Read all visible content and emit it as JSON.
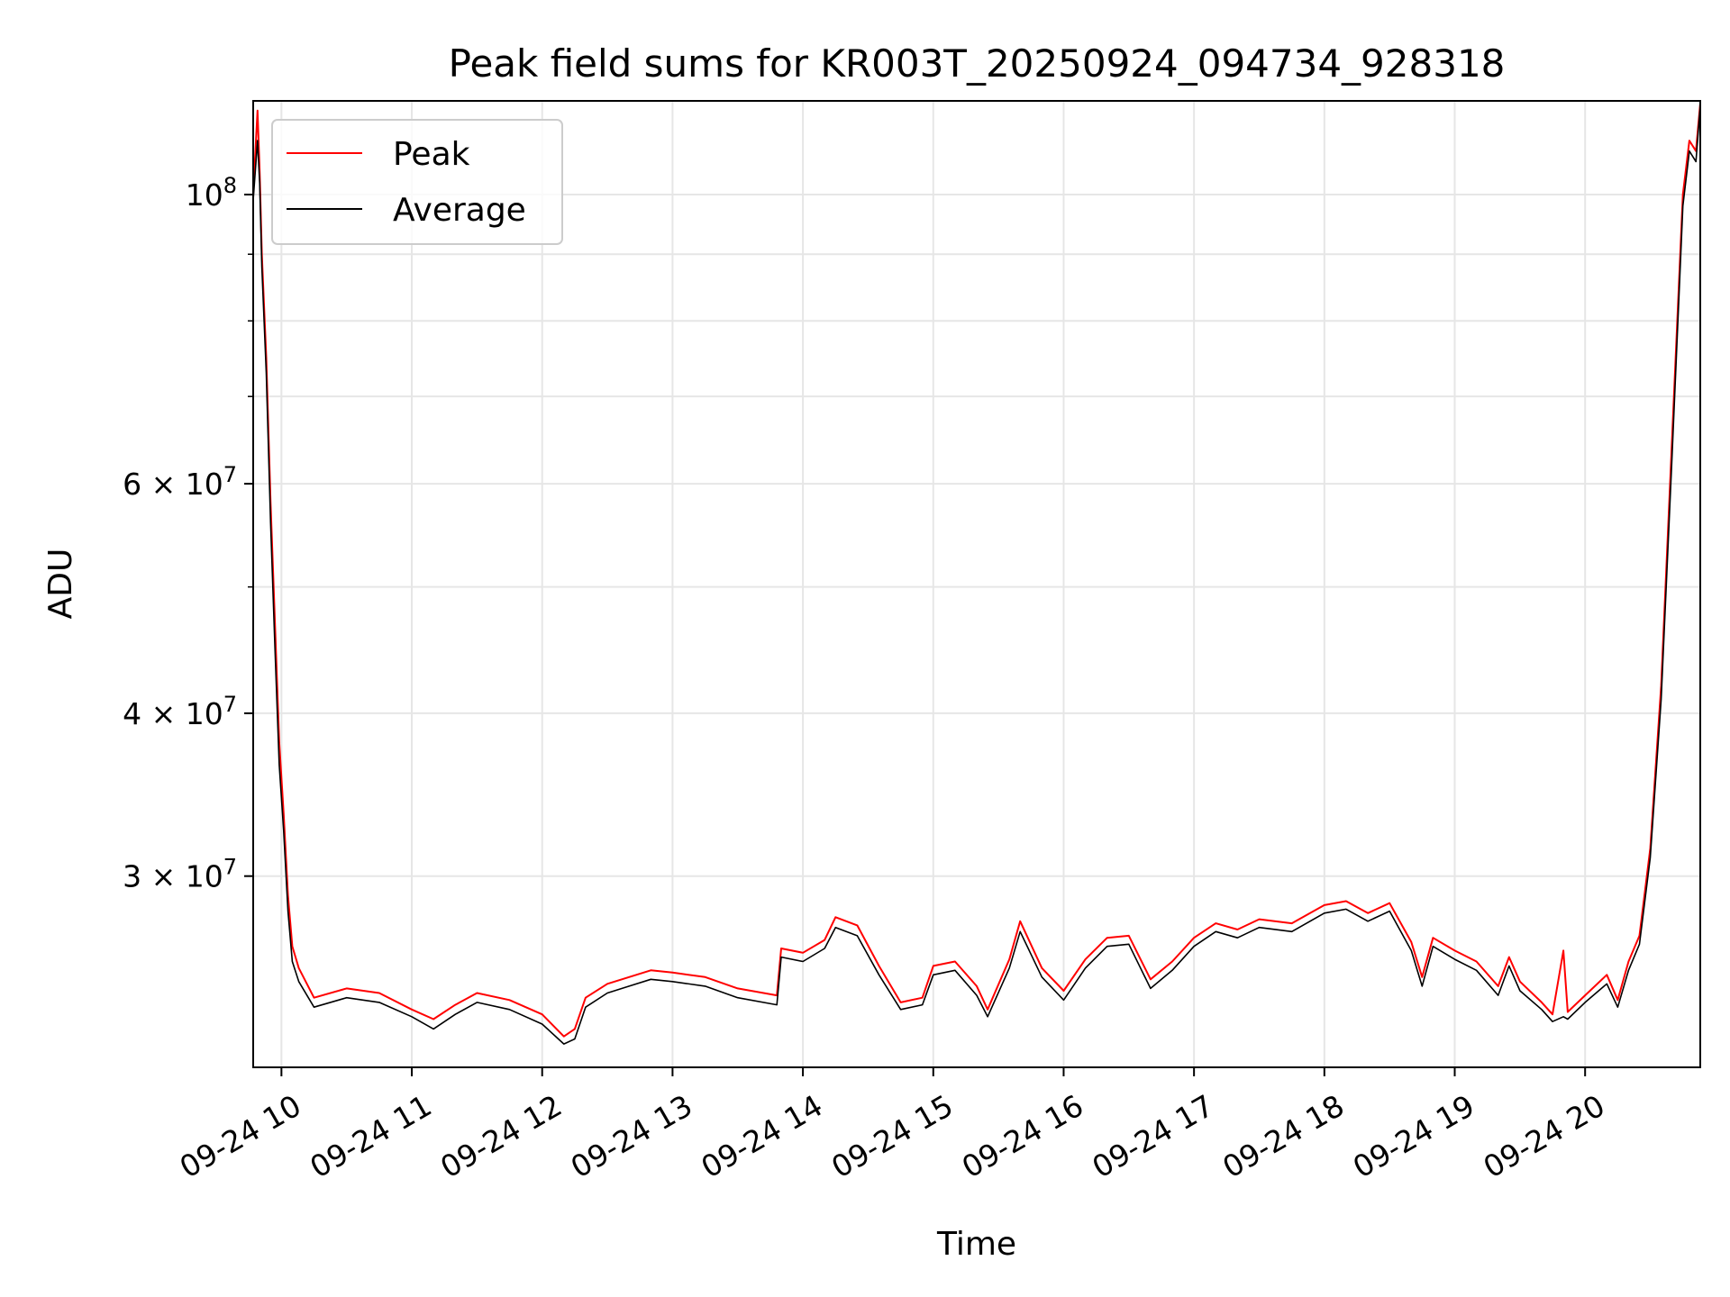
{
  "chart_data": {
    "type": "line",
    "title": "Peak field sums for KR003T_20250924_094734_928318",
    "xlabel": "Time",
    "ylabel": "ADU",
    "yscale": "log",
    "xlim": [
      "2025-09-24 09:47",
      "2025-09-24 20:53"
    ],
    "ylim": [
      21400000,
      118000000
    ],
    "x_ticks": [
      {
        "t": "2025-09-24 10:00",
        "label": "09-24 10"
      },
      {
        "t": "2025-09-24 11:00",
        "label": "09-24 11"
      },
      {
        "t": "2025-09-24 12:00",
        "label": "09-24 12"
      },
      {
        "t": "2025-09-24 13:00",
        "label": "09-24 13"
      },
      {
        "t": "2025-09-24 14:00",
        "label": "09-24 14"
      },
      {
        "t": "2025-09-24 15:00",
        "label": "09-24 15"
      },
      {
        "t": "2025-09-24 16:00",
        "label": "09-24 16"
      },
      {
        "t": "2025-09-24 17:00",
        "label": "09-24 17"
      },
      {
        "t": "2025-09-24 18:00",
        "label": "09-24 18"
      },
      {
        "t": "2025-09-24 19:00",
        "label": "09-24 19"
      },
      {
        "t": "2025-09-24 20:00",
        "label": "09-24 20"
      }
    ],
    "y_major_ticks": [
      {
        "value": 30000000,
        "base": "3",
        "exp": "7"
      },
      {
        "value": 40000000,
        "base": "4",
        "exp": "7"
      },
      {
        "value": 60000000,
        "base": "6",
        "exp": "7"
      },
      {
        "value": 100000000,
        "base": "",
        "exp": "8"
      }
    ],
    "y_minor_ticks": [
      50000000,
      70000000,
      80000000,
      90000000
    ],
    "grid": true,
    "legend": {
      "placement": "upper-left",
      "entries": [
        "Peak",
        "Average"
      ]
    },
    "series": [
      {
        "name": "Peak",
        "color": "#ff0000",
        "points": [
          [
            "2025-09-24 09:47",
            100000000
          ],
          [
            "2025-09-24 09:49",
            116000000
          ],
          [
            "2025-09-24 09:50",
            104000000
          ],
          [
            "2025-09-24 09:51",
            90000000
          ],
          [
            "2025-09-24 09:53",
            75000000
          ],
          [
            "2025-09-24 09:55",
            58000000
          ],
          [
            "2025-09-24 09:57",
            47000000
          ],
          [
            "2025-09-24 09:59",
            38000000
          ],
          [
            "2025-09-24 10:01",
            33500000
          ],
          [
            "2025-09-24 10:03",
            29000000
          ],
          [
            "2025-09-24 10:05",
            26500000
          ],
          [
            "2025-09-24 10:08",
            25500000
          ],
          [
            "2025-09-24 10:15",
            24200000
          ],
          [
            "2025-09-24 10:30",
            24600000
          ],
          [
            "2025-09-24 10:45",
            24400000
          ],
          [
            "2025-09-24 11:00",
            23700000
          ],
          [
            "2025-09-24 11:10",
            23300000
          ],
          [
            "2025-09-24 11:20",
            23900000
          ],
          [
            "2025-09-24 11:30",
            24400000
          ],
          [
            "2025-09-24 11:45",
            24100000
          ],
          [
            "2025-09-24 12:00",
            23500000
          ],
          [
            "2025-09-24 12:10",
            22600000
          ],
          [
            "2025-09-24 12:15",
            22900000
          ],
          [
            "2025-09-24 12:20",
            24200000
          ],
          [
            "2025-09-24 12:30",
            24800000
          ],
          [
            "2025-09-24 12:40",
            25100000
          ],
          [
            "2025-09-24 12:50",
            25400000
          ],
          [
            "2025-09-24 13:00",
            25300000
          ],
          [
            "2025-09-24 13:15",
            25100000
          ],
          [
            "2025-09-24 13:30",
            24600000
          ],
          [
            "2025-09-24 13:48",
            24300000
          ],
          [
            "2025-09-24 13:50",
            26400000
          ],
          [
            "2025-09-24 14:00",
            26200000
          ],
          [
            "2025-09-24 14:10",
            26800000
          ],
          [
            "2025-09-24 14:15",
            27900000
          ],
          [
            "2025-09-24 14:25",
            27500000
          ],
          [
            "2025-09-24 14:35",
            25600000
          ],
          [
            "2025-09-24 14:45",
            24000000
          ],
          [
            "2025-09-24 14:55",
            24200000
          ],
          [
            "2025-09-24 15:00",
            25600000
          ],
          [
            "2025-09-24 15:10",
            25800000
          ],
          [
            "2025-09-24 15:20",
            24700000
          ],
          [
            "2025-09-24 15:25",
            23700000
          ],
          [
            "2025-09-24 15:35",
            25900000
          ],
          [
            "2025-09-24 15:40",
            27700000
          ],
          [
            "2025-09-24 15:50",
            25500000
          ],
          [
            "2025-09-24 16:00",
            24500000
          ],
          [
            "2025-09-24 16:10",
            25900000
          ],
          [
            "2025-09-24 16:20",
            26900000
          ],
          [
            "2025-09-24 16:30",
            27000000
          ],
          [
            "2025-09-24 16:40",
            25000000
          ],
          [
            "2025-09-24 16:50",
            25800000
          ],
          [
            "2025-09-24 17:00",
            26900000
          ],
          [
            "2025-09-24 17:10",
            27600000
          ],
          [
            "2025-09-24 17:20",
            27300000
          ],
          [
            "2025-09-24 17:30",
            27800000
          ],
          [
            "2025-09-24 17:45",
            27600000
          ],
          [
            "2025-09-24 18:00",
            28500000
          ],
          [
            "2025-09-24 18:10",
            28700000
          ],
          [
            "2025-09-24 18:20",
            28100000
          ],
          [
            "2025-09-24 18:30",
            28600000
          ],
          [
            "2025-09-24 18:40",
            26700000
          ],
          [
            "2025-09-24 18:45",
            25100000
          ],
          [
            "2025-09-24 18:50",
            26900000
          ],
          [
            "2025-09-24 19:00",
            26300000
          ],
          [
            "2025-09-24 19:10",
            25800000
          ],
          [
            "2025-09-24 19:20",
            24700000
          ],
          [
            "2025-09-24 19:25",
            26000000
          ],
          [
            "2025-09-24 19:30",
            24900000
          ],
          [
            "2025-09-24 19:40",
            24000000
          ],
          [
            "2025-09-24 19:45",
            23500000
          ],
          [
            "2025-09-24 19:50",
            26300000
          ],
          [
            "2025-09-24 19:52",
            23600000
          ],
          [
            "2025-09-24 20:00",
            24300000
          ],
          [
            "2025-09-24 20:10",
            25200000
          ],
          [
            "2025-09-24 20:15",
            24100000
          ],
          [
            "2025-09-24 20:20",
            25800000
          ],
          [
            "2025-09-24 20:25",
            27000000
          ],
          [
            "2025-09-24 20:30",
            31500000
          ],
          [
            "2025-09-24 20:35",
            42000000
          ],
          [
            "2025-09-24 20:40",
            65000000
          ],
          [
            "2025-09-24 20:45",
            100000000
          ],
          [
            "2025-09-24 20:48",
            110000000
          ],
          [
            "2025-09-24 20:51",
            108000000
          ],
          [
            "2025-09-24 20:53",
            117500000
          ]
        ]
      },
      {
        "name": "Average",
        "color": "#000000",
        "points": [
          [
            "2025-09-24 09:47",
            99000000
          ],
          [
            "2025-09-24 09:49",
            110000000
          ],
          [
            "2025-09-24 09:50",
            102000000
          ],
          [
            "2025-09-24 09:51",
            88000000
          ],
          [
            "2025-09-24 09:53",
            73000000
          ],
          [
            "2025-09-24 09:55",
            56000000
          ],
          [
            "2025-09-24 09:57",
            45000000
          ],
          [
            "2025-09-24 09:59",
            36500000
          ],
          [
            "2025-09-24 10:01",
            32500000
          ],
          [
            "2025-09-24 10:03",
            28200000
          ],
          [
            "2025-09-24 10:05",
            25800000
          ],
          [
            "2025-09-24 10:08",
            24900000
          ],
          [
            "2025-09-24 10:15",
            23800000
          ],
          [
            "2025-09-24 10:30",
            24200000
          ],
          [
            "2025-09-24 10:45",
            24000000
          ],
          [
            "2025-09-24 11:00",
            23400000
          ],
          [
            "2025-09-24 11:10",
            22900000
          ],
          [
            "2025-09-24 11:20",
            23500000
          ],
          [
            "2025-09-24 11:30",
            24000000
          ],
          [
            "2025-09-24 11:45",
            23700000
          ],
          [
            "2025-09-24 12:00",
            23100000
          ],
          [
            "2025-09-24 12:10",
            22300000
          ],
          [
            "2025-09-24 12:15",
            22500000
          ],
          [
            "2025-09-24 12:20",
            23800000
          ],
          [
            "2025-09-24 12:30",
            24400000
          ],
          [
            "2025-09-24 12:40",
            24700000
          ],
          [
            "2025-09-24 12:50",
            25000000
          ],
          [
            "2025-09-24 13:00",
            24900000
          ],
          [
            "2025-09-24 13:15",
            24700000
          ],
          [
            "2025-09-24 13:30",
            24200000
          ],
          [
            "2025-09-24 13:48",
            23900000
          ],
          [
            "2025-09-24 13:50",
            26000000
          ],
          [
            "2025-09-24 14:00",
            25800000
          ],
          [
            "2025-09-24 14:10",
            26400000
          ],
          [
            "2025-09-24 14:15",
            27400000
          ],
          [
            "2025-09-24 14:25",
            27000000
          ],
          [
            "2025-09-24 14:35",
            25200000
          ],
          [
            "2025-09-24 14:45",
            23700000
          ],
          [
            "2025-09-24 14:55",
            23900000
          ],
          [
            "2025-09-24 15:00",
            25200000
          ],
          [
            "2025-09-24 15:10",
            25400000
          ],
          [
            "2025-09-24 15:20",
            24300000
          ],
          [
            "2025-09-24 15:25",
            23400000
          ],
          [
            "2025-09-24 15:35",
            25500000
          ],
          [
            "2025-09-24 15:40",
            27200000
          ],
          [
            "2025-09-24 15:50",
            25100000
          ],
          [
            "2025-09-24 16:00",
            24100000
          ],
          [
            "2025-09-24 16:10",
            25500000
          ],
          [
            "2025-09-24 16:20",
            26500000
          ],
          [
            "2025-09-24 16:30",
            26600000
          ],
          [
            "2025-09-24 16:40",
            24600000
          ],
          [
            "2025-09-24 16:50",
            25400000
          ],
          [
            "2025-09-24 17:00",
            26500000
          ],
          [
            "2025-09-24 17:10",
            27200000
          ],
          [
            "2025-09-24 17:20",
            26900000
          ],
          [
            "2025-09-24 17:30",
            27400000
          ],
          [
            "2025-09-24 17:45",
            27200000
          ],
          [
            "2025-09-24 18:00",
            28100000
          ],
          [
            "2025-09-24 18:10",
            28300000
          ],
          [
            "2025-09-24 18:20",
            27700000
          ],
          [
            "2025-09-24 18:30",
            28200000
          ],
          [
            "2025-09-24 18:40",
            26300000
          ],
          [
            "2025-09-24 18:45",
            24700000
          ],
          [
            "2025-09-24 18:50",
            26500000
          ],
          [
            "2025-09-24 19:00",
            25900000
          ],
          [
            "2025-09-24 19:10",
            25400000
          ],
          [
            "2025-09-24 19:20",
            24300000
          ],
          [
            "2025-09-24 19:25",
            25600000
          ],
          [
            "2025-09-24 19:30",
            24500000
          ],
          [
            "2025-09-24 19:40",
            23700000
          ],
          [
            "2025-09-24 19:45",
            23200000
          ],
          [
            "2025-09-24 19:50",
            23400000
          ],
          [
            "2025-09-24 19:52",
            23300000
          ],
          [
            "2025-09-24 20:00",
            24000000
          ],
          [
            "2025-09-24 20:10",
            24800000
          ],
          [
            "2025-09-24 20:15",
            23800000
          ],
          [
            "2025-09-24 20:20",
            25400000
          ],
          [
            "2025-09-24 20:25",
            26600000
          ],
          [
            "2025-09-24 20:30",
            31000000
          ],
          [
            "2025-09-24 20:35",
            41000000
          ],
          [
            "2025-09-24 20:40",
            63000000
          ],
          [
            "2025-09-24 20:45",
            98000000
          ],
          [
            "2025-09-24 20:48",
            108000000
          ],
          [
            "2025-09-24 20:51",
            106000000
          ],
          [
            "2025-09-24 20:53",
            117000000
          ]
        ]
      }
    ]
  }
}
